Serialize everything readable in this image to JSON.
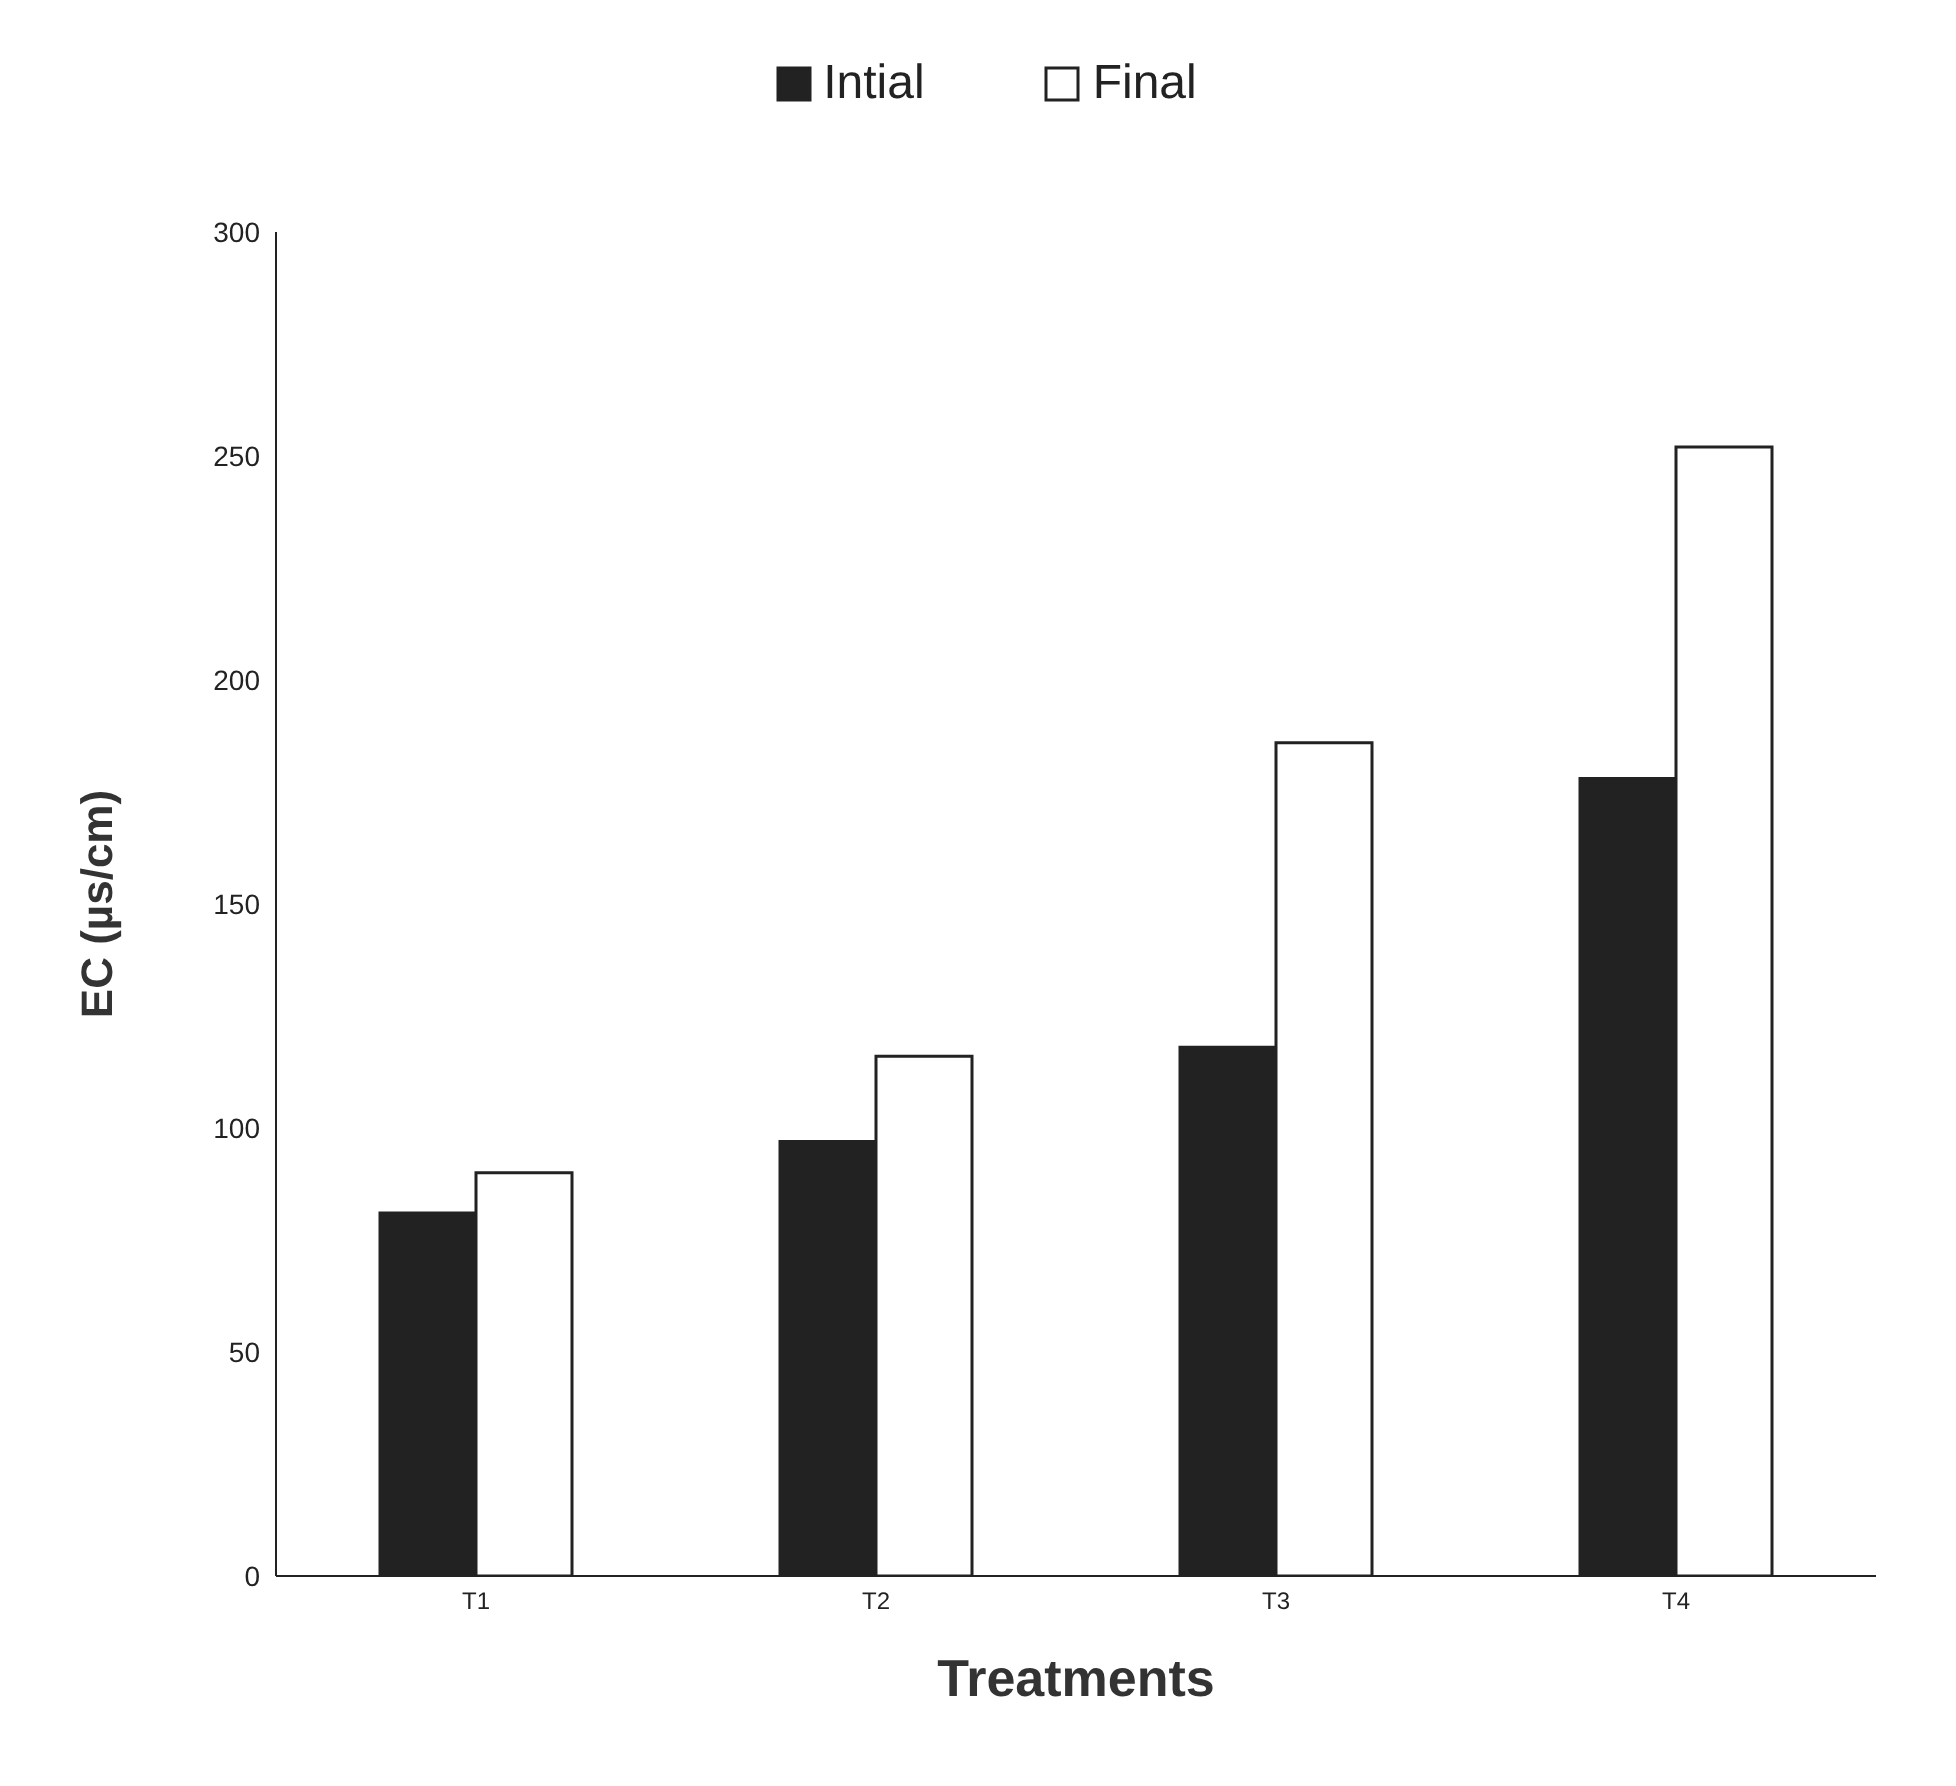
{
  "chart_data": {
    "type": "bar",
    "xlabel": "Treatments",
    "ylabel": "EC (µs/cm)",
    "categories": [
      "T1",
      "T2",
      "T3",
      "T4"
    ],
    "series": [
      {
        "name": "Intial",
        "color": "#222222",
        "values": [
          81,
          97,
          118,
          178
        ]
      },
      {
        "name": "Final",
        "color": "#ffffff",
        "values": [
          90,
          116,
          186,
          252
        ]
      }
    ],
    "ylim": [
      0,
      300
    ],
    "yticks": [
      0,
      50,
      100,
      150,
      200,
      250,
      300
    ],
    "grid": false,
    "legend": "top"
  }
}
